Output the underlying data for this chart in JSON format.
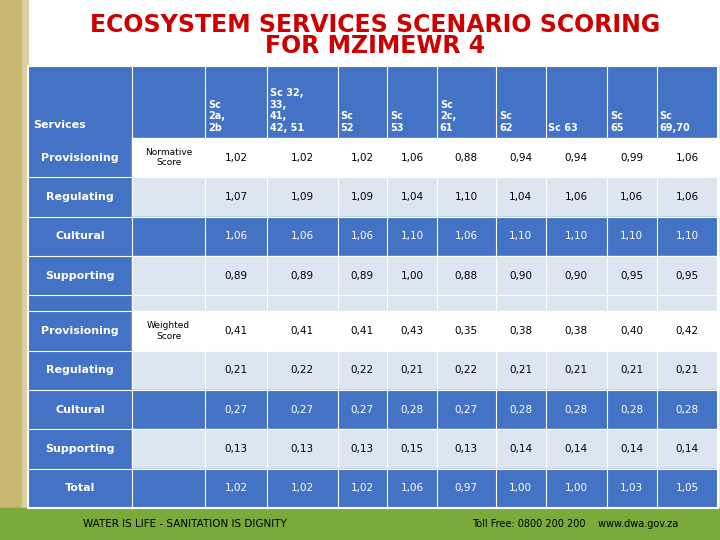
{
  "title_line1": "ECOSYSTEM SERVICES SCENARIO SCORING",
  "title_line2": "FOR MZIMEWR 4",
  "title_color": "#cc0000",
  "title_fontsize": 17,
  "bg_color": "#ffffff",
  "header_bg": "#4472c4",
  "col_headers": [
    "Services",
    "",
    "Sc\n2a,\n2b",
    "Sc 32,\n33,\n41,\n42, 51",
    "Sc\n52",
    "Sc\n53",
    "Sc\n2c,\n61",
    "Sc\n62",
    "Sc 63",
    "Sc\n65",
    "Sc\n69,70"
  ],
  "row_groups": [
    {
      "service": "Provisioning",
      "score_label": "Normative\nScore",
      "values": [
        "1,02",
        "1,02",
        "1,02",
        "1,06",
        "0,88",
        "0,94",
        "0,94",
        "0,99",
        "1,06"
      ],
      "row_bg": "#ffffff",
      "service_bg": "#4472c4"
    },
    {
      "service": "Regulating",
      "score_label": "",
      "values": [
        "1,07",
        "1,09",
        "1,09",
        "1,04",
        "1,10",
        "1,04",
        "1,06",
        "1,06",
        "1,06"
      ],
      "row_bg": "#dce6f1",
      "service_bg": "#4472c4"
    },
    {
      "service": "Cultural",
      "score_label": "",
      "values": [
        "1,06",
        "1,06",
        "1,06",
        "1,10",
        "1,06",
        "1,10",
        "1,10",
        "1,10",
        "1,10"
      ],
      "row_bg": "#4472c4",
      "service_bg": "#4472c4"
    },
    {
      "service": "Supporting",
      "score_label": "",
      "values": [
        "0,89",
        "0,89",
        "0,89",
        "1,00",
        "0,88",
        "0,90",
        "0,90",
        "0,95",
        "0,95"
      ],
      "row_bg": "#dce6f1",
      "service_bg": "#4472c4"
    },
    {
      "service": "",
      "score_label": "",
      "values": [
        "",
        "",
        "",
        "",
        "",
        "",
        "",
        "",
        ""
      ],
      "row_bg": "#dce6f1",
      "service_bg": "#4472c4"
    },
    {
      "service": "Provisioning",
      "score_label": "Weighted\nScore",
      "values": [
        "0,41",
        "0,41",
        "0,41",
        "0,43",
        "0,35",
        "0,38",
        "0,38",
        "0,40",
        "0,42"
      ],
      "row_bg": "#ffffff",
      "service_bg": "#4472c4"
    },
    {
      "service": "Regulating",
      "score_label": "",
      "values": [
        "0,21",
        "0,22",
        "0,22",
        "0,21",
        "0,22",
        "0,21",
        "0,21",
        "0,21",
        "0,21"
      ],
      "row_bg": "#dce6f1",
      "service_bg": "#4472c4"
    },
    {
      "service": "Cultural",
      "score_label": "",
      "values": [
        "0,27",
        "0,27",
        "0,27",
        "0,28",
        "0,27",
        "0,28",
        "0,28",
        "0,28",
        "0,28"
      ],
      "row_bg": "#4472c4",
      "service_bg": "#4472c4"
    },
    {
      "service": "Supporting",
      "score_label": "",
      "values": [
        "0,13",
        "0,13",
        "0,13",
        "0,15",
        "0,13",
        "0,14",
        "0,14",
        "0,14",
        "0,14"
      ],
      "row_bg": "#dce6f1",
      "service_bg": "#4472c4"
    },
    {
      "service": "Total",
      "score_label": "",
      "values": [
        "1,02",
        "1,02",
        "1,02",
        "1,06",
        "0,97",
        "1,00",
        "1,00",
        "1,03",
        "1,05"
      ],
      "row_bg": "#4472c4",
      "service_bg": "#4472c4"
    }
  ],
  "footer_text": "WATER IS LIFE - SANITATION IS DIGNITY",
  "footer_right": "Toll Free: 0800 200 200    www.dwa.gov.za",
  "footer_bg": "#7aaa3a",
  "footer_color": "#000000",
  "left_bar_color": "#c8b870",
  "left_bar2_color": "#ddd0a0"
}
